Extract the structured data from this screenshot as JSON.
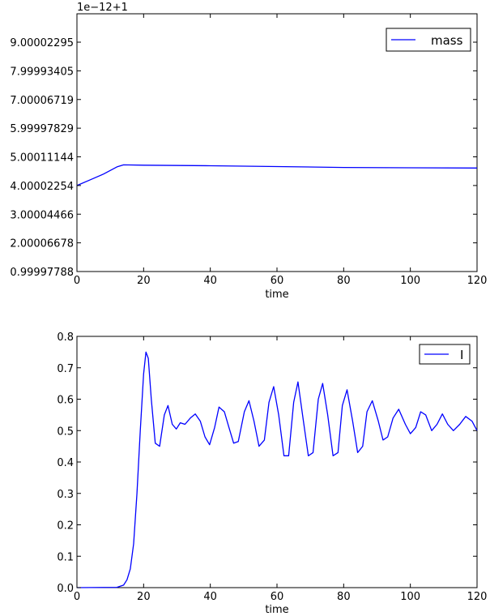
{
  "chart_data": [
    {
      "type": "line",
      "offset_text": "1e−12+1",
      "xlabel": "time",
      "ylabel": "",
      "xlim": [
        0,
        120
      ],
      "ylim": [
        0.99997788,
        9.99
      ],
      "xticks": [
        "0",
        "20",
        "40",
        "60",
        "80",
        "100",
        "120"
      ],
      "yticks": [
        {
          "value": 0.99997788,
          "label": "0.99997788"
        },
        {
          "value": 2.00006678,
          "label": "2.00006678"
        },
        {
          "value": 3.00004466,
          "label": "3.00004466"
        },
        {
          "value": 4.00002254,
          "label": "4.00002254"
        },
        {
          "value": 5.00011144,
          "label": "5.00011144"
        },
        {
          "value": 5.99997829,
          "label": "5.99997829"
        },
        {
          "value": 7.00006719,
          "label": "7.00006719"
        },
        {
          "value": 7.99993405,
          "label": "7.99993405"
        },
        {
          "value": 9.00002295,
          "label": "9.00002295"
        }
      ],
      "legend_position": "top-right",
      "grid": false,
      "series": [
        {
          "name": "mass",
          "color": "#0000ff",
          "x": [
            0,
            4,
            8,
            12,
            14,
            20,
            40,
            60,
            80,
            100,
            120
          ],
          "y": [
            4.0,
            4.2,
            4.4,
            4.65,
            4.72,
            4.71,
            4.69,
            4.66,
            4.63,
            4.62,
            4.61
          ]
        }
      ]
    },
    {
      "type": "line",
      "xlabel": "time",
      "ylabel": "",
      "xlim": [
        0,
        120
      ],
      "ylim": [
        0,
        0.8
      ],
      "xticks": [
        "0",
        "20",
        "40",
        "60",
        "80",
        "100",
        "120"
      ],
      "yticks": [
        {
          "value": 0.0,
          "label": "0.0"
        },
        {
          "value": 0.1,
          "label": "0.1"
        },
        {
          "value": 0.2,
          "label": "0.2"
        },
        {
          "value": 0.3,
          "label": "0.3"
        },
        {
          "value": 0.4,
          "label": "0.4"
        },
        {
          "value": 0.5,
          "label": "0.5"
        },
        {
          "value": 0.6,
          "label": "0.6"
        },
        {
          "value": 0.7,
          "label": "0.7"
        },
        {
          "value": 0.8,
          "label": "0.8"
        }
      ],
      "legend_position": "top-right",
      "grid": false,
      "series": [
        {
          "name": "I",
          "color": "#0000ff",
          "x": [
            0,
            12,
            14,
            15,
            16,
            17,
            18,
            19,
            20,
            20.7,
            21.4,
            22.3,
            23.5,
            24.8,
            26.2,
            27.3,
            28.6,
            29.8,
            31,
            32.4,
            34,
            35.5,
            37,
            38.4,
            39.8,
            41.3,
            42.6,
            44.2,
            45.6,
            47,
            48.4,
            50.2,
            51.6,
            53.1,
            54.6,
            56.2,
            57.6,
            59,
            60.5,
            62.1,
            63.5,
            65,
            66.3,
            67.8,
            69.4,
            70.8,
            72.4,
            73.7,
            75.2,
            76.8,
            78.3,
            79.6,
            81,
            82.7,
            84.2,
            85.7,
            87,
            88.6,
            90.4,
            91.8,
            93.2,
            94.8,
            96.5,
            98.5,
            100,
            101.6,
            103.1,
            104.6,
            106.4,
            108,
            109.6,
            111.2,
            112.9,
            114.8,
            116.6,
            118.5,
            120
          ],
          "y": [
            0.0,
            0.001,
            0.008,
            0.025,
            0.06,
            0.14,
            0.3,
            0.5,
            0.68,
            0.75,
            0.73,
            0.6,
            0.46,
            0.45,
            0.55,
            0.58,
            0.52,
            0.505,
            0.525,
            0.52,
            0.54,
            0.553,
            0.53,
            0.48,
            0.455,
            0.51,
            0.575,
            0.56,
            0.51,
            0.46,
            0.465,
            0.56,
            0.595,
            0.53,
            0.45,
            0.47,
            0.59,
            0.64,
            0.55,
            0.42,
            0.42,
            0.59,
            0.655,
            0.54,
            0.42,
            0.43,
            0.6,
            0.65,
            0.55,
            0.42,
            0.43,
            0.58,
            0.63,
            0.53,
            0.43,
            0.45,
            0.56,
            0.595,
            0.53,
            0.47,
            0.48,
            0.54,
            0.568,
            0.52,
            0.49,
            0.51,
            0.56,
            0.55,
            0.5,
            0.52,
            0.553,
            0.52,
            0.5,
            0.52,
            0.545,
            0.53,
            0.5
          ]
        }
      ]
    }
  ]
}
